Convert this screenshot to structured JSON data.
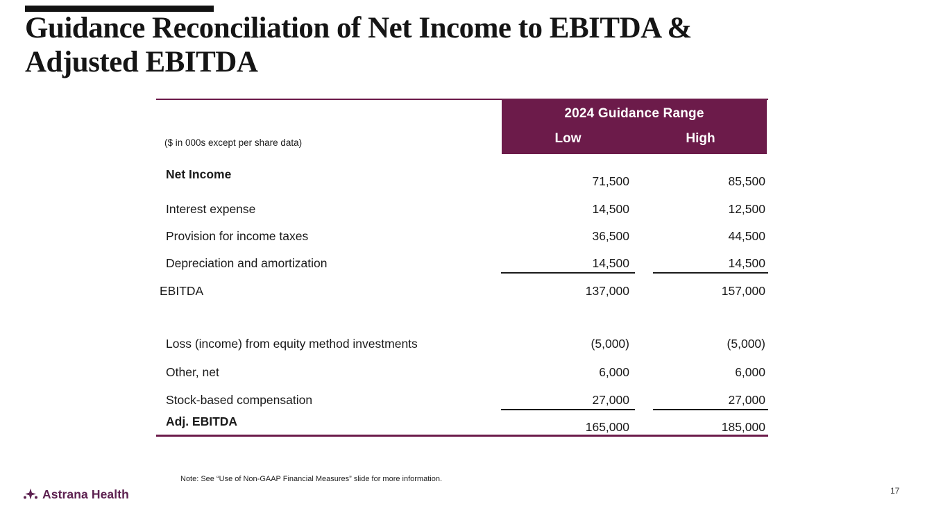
{
  "slide": {
    "title_line1": "Guidance Reconciliation of Net Income to EBITDA &",
    "title_line2": "Adjusted EBITDA",
    "note": "Note: See “Use of Non-GAAP Financial Measures” slide for more information.",
    "logo_text": "Astrana Health",
    "page_number": "17"
  },
  "table": {
    "units_label": "($ in 000s except per share data)",
    "header": {
      "group": "2024 Guidance Range",
      "low": "Low",
      "high": "High"
    },
    "rows": [
      {
        "label": "Net Income",
        "low": "71,500",
        "high": "85,500"
      },
      {
        "label": "Interest expense",
        "low": "14,500",
        "high": "12,500"
      },
      {
        "label": "Provision for income taxes",
        "low": "36,500",
        "high": "44,500"
      },
      {
        "label": "Depreciation and amortization",
        "low": "14,500",
        "high": "14,500"
      },
      {
        "label": "EBITDA",
        "low": "137,000",
        "high": "157,000"
      },
      {
        "label": "Loss (income) from equity method investments",
        "low": "(5,000)",
        "high": "(5,000)"
      },
      {
        "label": "Other, net",
        "low": "6,000",
        "high": "6,000"
      },
      {
        "label": "Stock-based compensation",
        "low": "27,000",
        "high": "27,000"
      },
      {
        "label": "Adj. EBITDA",
        "low": "165,000",
        "high": "185,000"
      }
    ]
  },
  "colors": {
    "accent_plum": "#6c1b4a",
    "logo_plum": "#5d2150",
    "text": "#1a1a1a"
  }
}
